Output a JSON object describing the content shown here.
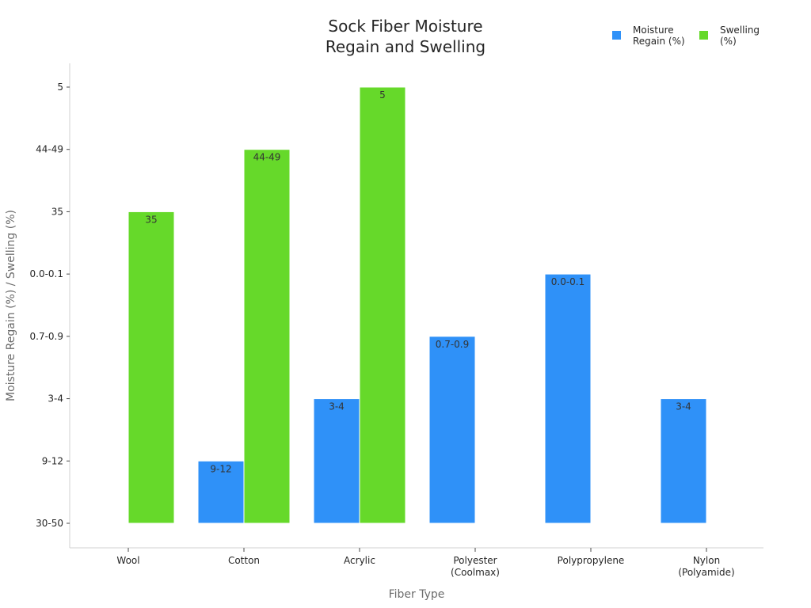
{
  "chart_data": {
    "type": "bar",
    "title": [
      "Sock Fiber Moisture",
      "Regain and Swelling"
    ],
    "xlabel": "Fiber Type",
    "ylabel": "Moisture Regain (%) / Swelling (%)",
    "categories": [
      [
        "Wool"
      ],
      [
        "Cotton"
      ],
      [
        "Acrylic"
      ],
      [
        "Polyester",
        "(Coolmax)"
      ],
      [
        "Polypropylene"
      ],
      [
        "Nylon",
        "(Polyamide)"
      ]
    ],
    "y_ticks": [
      "30-50",
      "9-12",
      "3-4",
      "0.7-0.9",
      "0.0-0.1",
      "35",
      "44-49",
      "5"
    ],
    "series": [
      {
        "name": [
          "Moisture",
          "Regain (%)"
        ],
        "color": "#2f91f8",
        "values": [
          null,
          "9-12",
          "3-4",
          "0.7-0.9",
          "0.0-0.1",
          "3-4"
        ]
      },
      {
        "name": [
          "Swelling",
          "(%)"
        ],
        "color": "#66d92a",
        "values": [
          "35",
          "44-49",
          "5",
          null,
          null,
          null
        ]
      }
    ],
    "grid": false,
    "legend_position": "top-right"
  }
}
